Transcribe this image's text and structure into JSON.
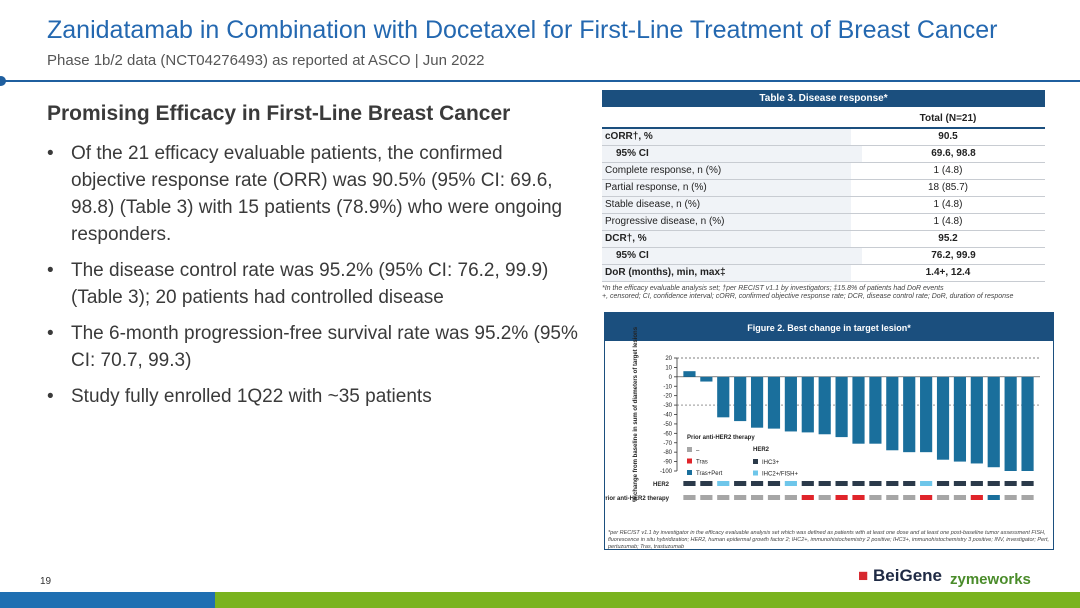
{
  "header": {
    "title": "Zanidatamab in Combination with Docetaxel for First-Line Treatment of Breast Cancer",
    "subtitle": "Phase 1b/2 data (NCT04276493) as reported at ASCO | Jun 2022"
  },
  "section": {
    "heading": "Promising Efficacy in First-Line Breast Cancer",
    "bullets": [
      "Of the 21 efficacy evaluable patients, the confirmed objective response rate (ORR) was 90.5% (95% CI: 69.6, 98.8) (Table 3) with 15 patients (78.9%) who were ongoing responders.",
      "The disease control rate was 95.2% (95% CI: 76.2, 99.9) (Table 3); 20 patients had controlled disease",
      "The 6-month progression-free survival rate was 95.2% (95% CI: 70.7, 99.3)",
      "Study fully enrolled 1Q22 with ~35 patients"
    ]
  },
  "table": {
    "title": "Table 3. Disease response*",
    "column": "Total (N=21)",
    "rows": [
      [
        "cORR†, %",
        "90.5"
      ],
      [
        "95% CI",
        "69.6, 98.8"
      ],
      [
        "Complete response, n (%)",
        "1 (4.8)"
      ],
      [
        "Partial response, n (%)",
        "18 (85.7)"
      ],
      [
        "Stable disease, n (%)",
        "1 (4.8)"
      ],
      [
        "Progressive disease, n (%)",
        "1 (4.8)"
      ],
      [
        "DCR†, %",
        "95.2"
      ],
      [
        "95% CI",
        "76.2, 99.9"
      ],
      [
        "DoR (months), min, max‡",
        "1.4+, 12.4"
      ]
    ],
    "footnotes": [
      "*In the efficacy evaluable analysis set; †per RECIST v1.1 by investigators; ‡15.8% of patients had DoR events",
      "+, censored; CI, confidence interval; cORR, confirmed objective response rate; DCR, disease control rate; DoR, duration of response"
    ]
  },
  "chart_data": {
    "type": "bar",
    "title": "Figure 2. Best change in target lesion*",
    "ylabel": "% change from baseline in sum of diameters of target lesions",
    "color": "#1a6f9c",
    "values": [
      6,
      -5,
      -43,
      -47,
      -54,
      -55,
      -58,
      -59,
      -61,
      -64,
      -71,
      -71,
      -78,
      -80,
      -80,
      -88,
      -90,
      -92,
      -96,
      -100,
      -100
    ],
    "ylim": [
      -100,
      20
    ],
    "yticks": [
      20,
      10,
      0,
      -10,
      -20,
      -30,
      -40,
      -50,
      -60,
      -70,
      -80,
      -90,
      -100
    ],
    "reference_lines": [
      20,
      -30
    ],
    "rows": [
      {
        "name": "HER2",
        "values": [
          "IHC3+",
          "IHC3+",
          "IHC2+/FISH+",
          "IHC3+",
          "IHC3+",
          "IHC3+",
          "IHC2+/FISH+",
          "IHC3+",
          "IHC3+",
          "IHC3+",
          "IHC3+",
          "IHC3+",
          "IHC3+",
          "IHC3+",
          "IHC2+/FISH+",
          "IHC3+",
          "IHC3+",
          "IHC3+",
          "IHC3+",
          "IHC3+",
          "IHC3+"
        ]
      },
      {
        "name": "Prior anti-HER2 therapy",
        "values": [
          "–",
          "–",
          "–",
          "–",
          "–",
          "–",
          "–",
          "Tras",
          "–",
          "Tras",
          "Tras",
          "–",
          "–",
          "–",
          "Tras",
          "–",
          "–",
          "Tras",
          "Tras+Pert",
          "–",
          "–"
        ]
      }
    ],
    "legend": [
      {
        "title": "Prior anti-HER2 therapy",
        "items": [
          {
            "name": "–",
            "color": "#a6a6a6"
          },
          {
            "name": "Tras",
            "color": "#e0242a"
          },
          {
            "name": "Tras+Pert",
            "color": "#1a6f9c"
          }
        ]
      },
      {
        "title": "HER2",
        "items": [
          {
            "name": "IHC3+",
            "color": "#2b3a4a"
          },
          {
            "name": "IHC2+/FISH+",
            "color": "#6ec6ea"
          }
        ]
      }
    ],
    "note": "*per RECIST v1.1 by investigator in the efficacy evaluable analysis set which was defined as patients with at least one dose and at least one post-baseline tumor assessment FISH, fluorescence in situ hybridization; HER2, human epidermal growth factor 2; IHC2+, immunohistochemistry 2 positive; IHC3+, immunohistochemistry 3 positive; INV, investigator; Pert, pertuzumab; Tras, trastuzumab"
  },
  "footer": {
    "page": "19",
    "logos": [
      "BeiGene",
      "zymeworks"
    ]
  }
}
